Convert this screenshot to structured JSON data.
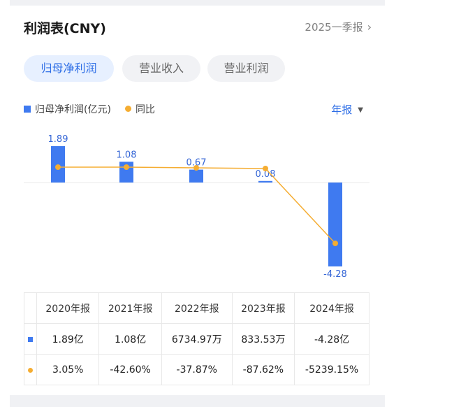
{
  "header": {
    "title": "利润表(CNY)",
    "period": "2025一季报"
  },
  "tabs": [
    {
      "label": "归母净利润",
      "active": true
    },
    {
      "label": "营业收入",
      "active": false
    },
    {
      "label": "营业利润",
      "active": false
    }
  ],
  "legend": {
    "bar_label": "归母净利润(亿元)",
    "line_label": "同比"
  },
  "frequency": {
    "label": "年报"
  },
  "colors": {
    "bar": "#3f7af0",
    "line": "#f5ad32",
    "accent": "#2e6ee6",
    "positive": "#e23c3c",
    "negative": "#1fa35d"
  },
  "chart_data": {
    "type": "bar",
    "categories": [
      "2020年报",
      "2021年报",
      "2022年报",
      "2023年报",
      "2024年报"
    ],
    "series": [
      {
        "name": "归母净利润(亿元)",
        "values": [
          1.89,
          1.08,
          0.67,
          0.08,
          -4.28
        ],
        "data_labels": [
          "1.89",
          "1.08",
          "0.67",
          "0.08",
          "-4.28"
        ]
      },
      {
        "name": "同比",
        "values": [
          3.05,
          -42.6,
          -37.87,
          -87.62,
          -5239.15
        ]
      }
    ]
  },
  "table": {
    "headers": [
      "2020年报",
      "2021年报",
      "2022年报",
      "2023年报",
      "2024年报"
    ],
    "profit_row": [
      "1.89亿",
      "1.08亿",
      "6734.97万",
      "833.53万",
      "-4.28亿"
    ],
    "yoy_row": [
      "3.05%",
      "-42.60%",
      "-37.87%",
      "-87.62%",
      "-5239.15%"
    ]
  }
}
